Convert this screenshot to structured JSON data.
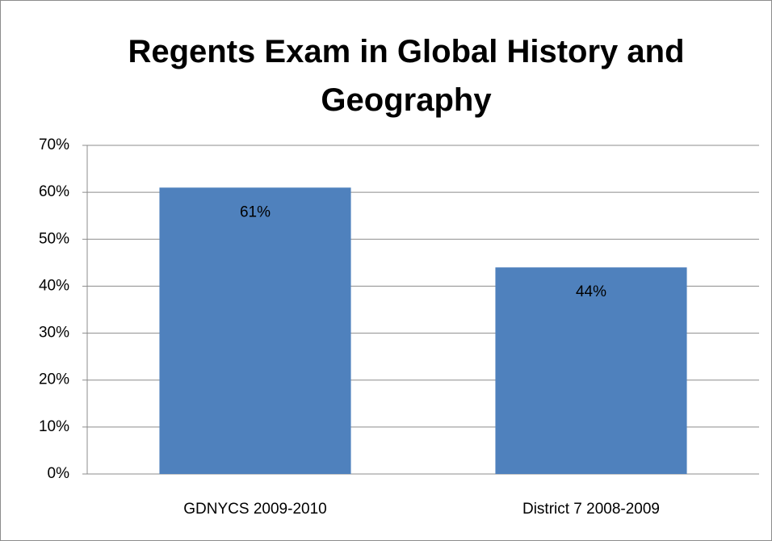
{
  "chart_data": {
    "type": "bar",
    "title": "Regents Exam in Global History and Geography",
    "categories": [
      "GDNYCS 2009-2010",
      "District 7 2008-2009"
    ],
    "values": [
      61,
      44
    ],
    "value_labels": [
      "61%",
      "44%"
    ],
    "color": "#4f81bd",
    "ylim": [
      0,
      70
    ],
    "yticks": [
      {
        "value": 0,
        "label": "0%"
      },
      {
        "value": 10,
        "label": "10%"
      },
      {
        "value": 20,
        "label": "20%"
      },
      {
        "value": 30,
        "label": "30%"
      },
      {
        "value": 40,
        "label": "40%"
      },
      {
        "value": 50,
        "label": "50%"
      },
      {
        "value": 60,
        "label": "60%"
      },
      {
        "value": 70,
        "label": "70%"
      }
    ],
    "grid": true
  }
}
